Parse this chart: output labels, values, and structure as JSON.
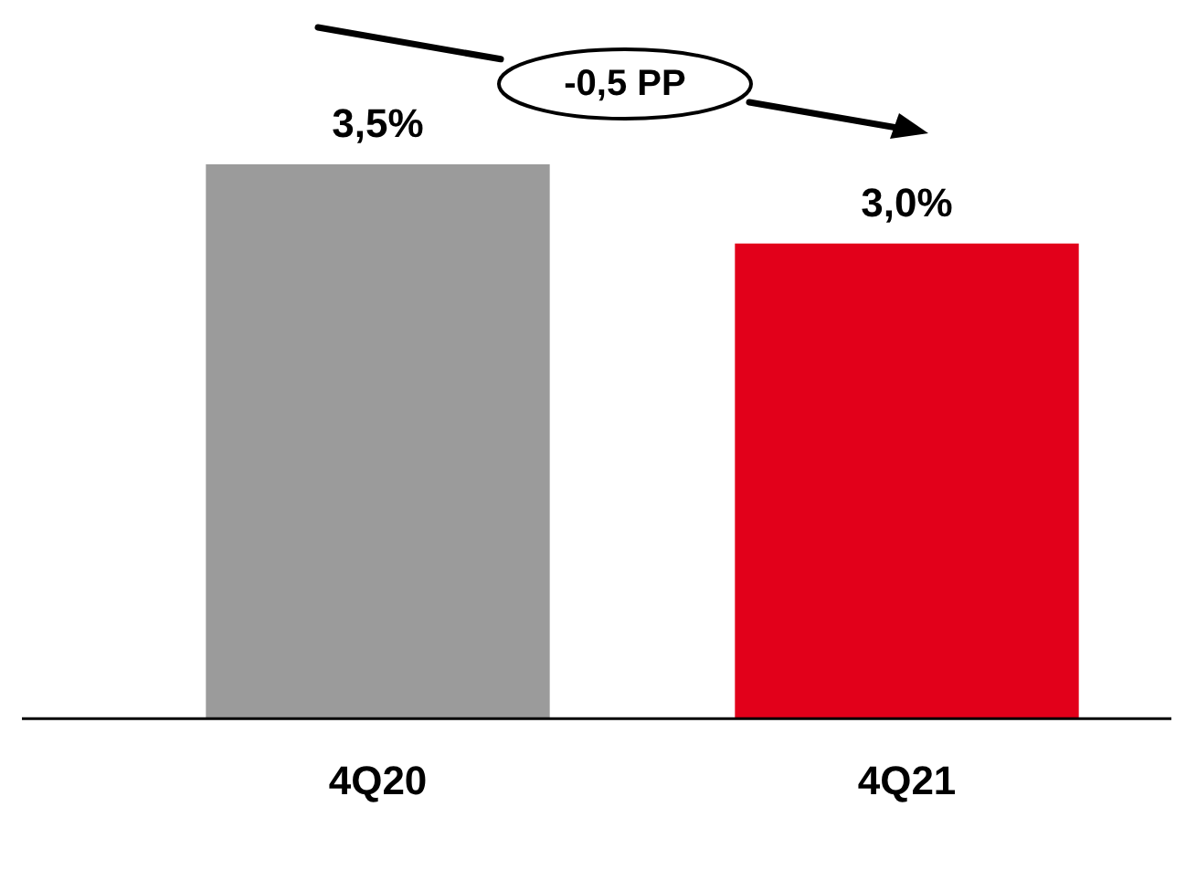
{
  "chart_data": {
    "type": "bar",
    "categories": [
      "4Q20",
      "4Q21"
    ],
    "colors": [
      "#9b9b9b",
      "#e2001a"
    ],
    "values": [
      3.5,
      3.0
    ],
    "value_labels": [
      "3,5%",
      "3,0%"
    ],
    "tick_labels": "x",
    "grid": false,
    "legend": false,
    "annotations": [
      "-0,5 PP"
    ]
  }
}
